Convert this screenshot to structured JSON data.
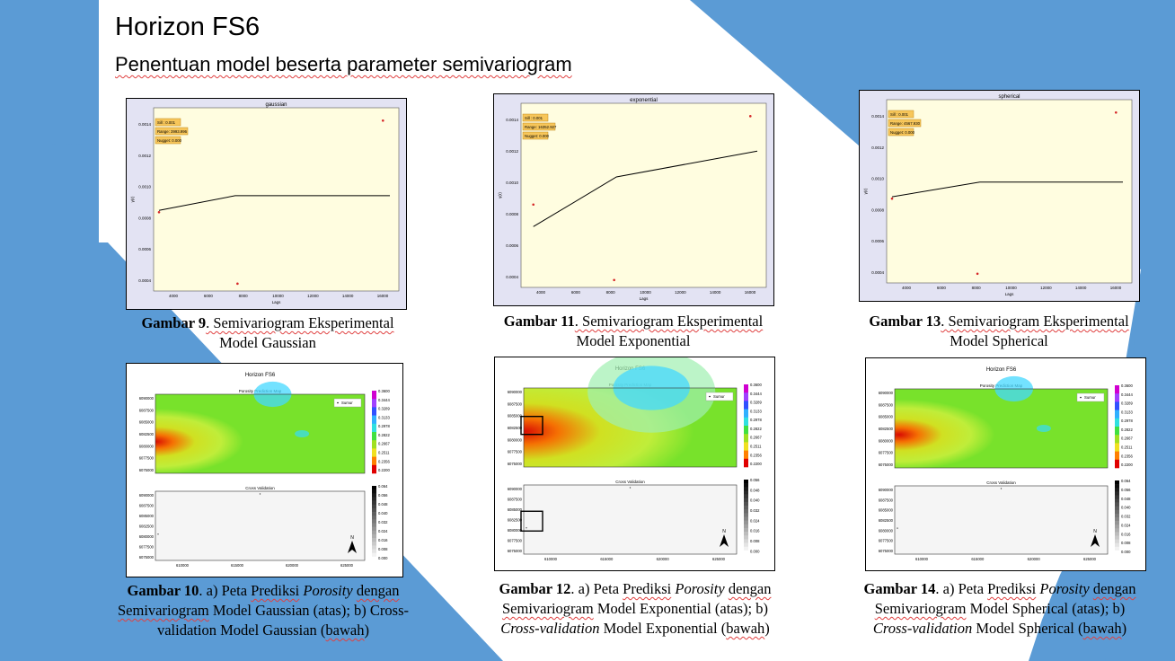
{
  "slide": {
    "title": "Horizon FS6",
    "subtitle": "Penentuan model beserta parameter semivariogram"
  },
  "semivariograms": [
    {
      "plot_title": "gaussian",
      "sill": "Sill    : 0.001",
      "range": "Range: 3993.996",
      "nugget": "Nugget: 0.000",
      "xlabel": "Lags",
      "ylabel": "γ(r)",
      "xticks": [
        "4000",
        "6000",
        "8000",
        "10000",
        "12000",
        "14000",
        "16000"
      ],
      "yticks": [
        "0.0004",
        "0.0006",
        "0.0008",
        "0.0010",
        "0.0012",
        "0.0014"
      ],
      "caption_num": "Gambar 9",
      "caption_l1": ". Semivariogram  Eksperimental",
      "caption_l2": "Model  Gaussian"
    },
    {
      "plot_title": "exponential",
      "sill": "Sill    : 0.001",
      "range": "Range: 16352.927",
      "nugget": "Nugget: 0.000",
      "xlabel": "Lags",
      "ylabel": "γ(r)",
      "xticks": [
        "4000",
        "6000",
        "8000",
        "10000",
        "12000",
        "14000",
        "16000"
      ],
      "yticks": [
        "0.0004",
        "0.0006",
        "0.0008",
        "0.0010",
        "0.0012",
        "0.0014"
      ],
      "caption_num": "Gambar 11",
      "caption_l1": ". Semivariogram  Eksperimental",
      "caption_l2": "Model  Exponential"
    },
    {
      "plot_title": "spherical",
      "sill": "Sill    : 0.001",
      "range": "Range: 4567.930",
      "nugget": "Nugget: 0.000",
      "xlabel": "Lags",
      "ylabel": "γ(r)",
      "xticks": [
        "4000",
        "6000",
        "8000",
        "10000",
        "12000",
        "14000",
        "16000"
      ],
      "yticks": [
        "0.0004",
        "0.0006",
        "0.0008",
        "0.0010",
        "0.0012",
        "0.0014"
      ],
      "caption_num": "Gambar 13",
      "caption_l1": ". Semivariogram  Eksperimental",
      "caption_l2": "Model  Spherical"
    }
  ],
  "maps": [
    {
      "main_title": "Horizon FS6",
      "map_title": "Porosity Prediction Map",
      "cv_title": "Cross Validation",
      "legend": "Sumur",
      "cbar_top": [
        "0.3600",
        "0.3444",
        "0.3289",
        "0.3133",
        "0.2978",
        "0.2822",
        "0.2667",
        "0.2511",
        "0.2356",
        "0.2200"
      ],
      "cbar_bot": [
        "0.064",
        "0.056",
        "0.048",
        "0.040",
        "0.032",
        "0.024",
        "0.016",
        "0.008",
        "0.000"
      ],
      "yticks": [
        "6090000",
        "6087500",
        "6085000",
        "6082500",
        "6080000",
        "6077500",
        "6075000"
      ],
      "xticks": [
        "610000",
        "615000",
        "620000",
        "625000"
      ],
      "caption_num": "Gambar 10",
      "caption_a": ". a) Peta ",
      "caption_w1": "Prediksi",
      "caption_it1": "Porosity",
      "caption_w2": "dengan",
      "caption_l2a": "Semivariogram",
      "caption_l2b": "  Model Gaussian (atas); b) Cross-",
      "caption_l3a": "validation",
      "caption_l3b": "  Model Gaussian (",
      "caption_l3c": "bawah",
      "caption_l3d": ")"
    },
    {
      "main_title": "Horizon FS6",
      "map_title": "Porosity Prediction Map",
      "cv_title": "Cross Validation",
      "legend": "Sumur",
      "cbar_top": [
        "0.3600",
        "0.3444",
        "0.3289",
        "0.3133",
        "0.2978",
        "0.2822",
        "0.2667",
        "0.2511",
        "0.2356",
        "0.2200"
      ],
      "cbar_bot": [
        "0.056",
        "0.048",
        "0.040",
        "0.032",
        "0.024",
        "0.016",
        "0.008",
        "0.000"
      ],
      "yticks": [
        "6090000",
        "6087500",
        "6085000",
        "6082500",
        "6080000",
        "6077500",
        "6075000"
      ],
      "xticks": [
        "610000",
        "615000",
        "620000",
        "625000"
      ],
      "caption_num": "Gambar 12",
      "caption_a": ". a) Peta ",
      "caption_w1": "Prediksi",
      "caption_it1": "Porosity",
      "caption_w2": "dengan",
      "caption_l2a": "Semivariogram",
      "caption_l2b": "  Model Exponential  (atas); b)",
      "caption_l3a": "Cross-validation",
      "caption_l3b": " Model Exponential  (",
      "caption_l3c": "bawah",
      "caption_l3d": ")"
    },
    {
      "main_title": "Horizon FS6",
      "map_title": "Porosity Prediction Map",
      "cv_title": "Cross Validation",
      "legend": "Sumur",
      "cbar_top": [
        "0.3600",
        "0.3444",
        "0.3289",
        "0.3133",
        "0.2978",
        "0.2822",
        "0.2667",
        "0.2511",
        "0.2356",
        "0.2200"
      ],
      "cbar_bot": [
        "0.064",
        "0.056",
        "0.048",
        "0.040",
        "0.032",
        "0.024",
        "0.016",
        "0.008",
        "0.000"
      ],
      "yticks": [
        "6090000",
        "6087500",
        "6085000",
        "6082500",
        "6080000",
        "6077500",
        "6075000"
      ],
      "xticks": [
        "610000",
        "615000",
        "620000",
        "625000"
      ],
      "caption_num": "Gambar 14",
      "caption_a": ". a) Peta ",
      "caption_w1": "Prediksi",
      "caption_it1": "Porosity",
      "caption_w2": "dengan",
      "caption_l2a": "Semivariogram",
      "caption_l2b": "  Model Spherical (atas); b) ",
      "caption_l3a": "Cross-validation",
      "caption_l3b": " Model Spherical (",
      "caption_l3c": "bawah",
      "caption_l3d": ")"
    }
  ],
  "colors": {
    "accent_blue": "#5b9bd5",
    "plot_bg": "#fffde0",
    "plot_frame": "#e3e3f3",
    "label_box": "#f7c65a"
  }
}
